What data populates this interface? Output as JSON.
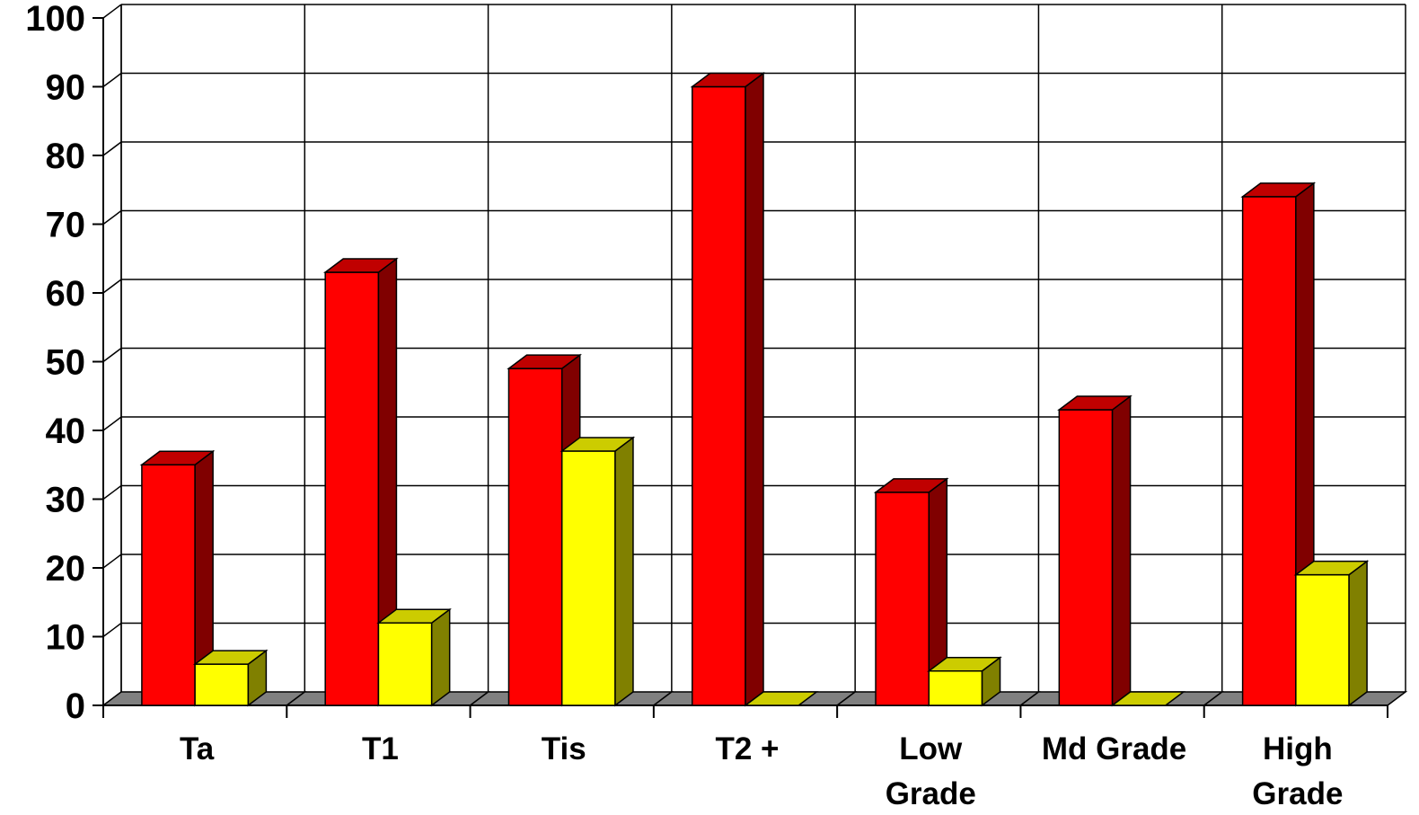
{
  "chart_data": {
    "type": "bar",
    "style": "3d-clustered-column",
    "categories": [
      "Ta",
      "T1",
      "Tis",
      "T2 +",
      "Low\nGrade",
      "Md Grade",
      "High\nGrade"
    ],
    "series": [
      {
        "values": [
          35,
          63,
          49,
          90,
          31,
          43,
          74
        ],
        "color": "#ff0000",
        "side_color": "#800000",
        "top_color": "#c00000"
      },
      {
        "values": [
          6,
          12,
          37,
          0,
          5,
          0,
          19
        ],
        "color": "#ffff00",
        "side_color": "#808000",
        "top_color": "#cccc00"
      }
    ],
    "ylim": [
      0,
      100
    ],
    "yticks": [
      "0",
      "10",
      "20",
      "30",
      "40",
      "50",
      "60",
      "70",
      "80",
      "90",
      "100"
    ],
    "grid": true,
    "legend": "none",
    "title": "",
    "xlabel": "",
    "ylabel": ""
  }
}
